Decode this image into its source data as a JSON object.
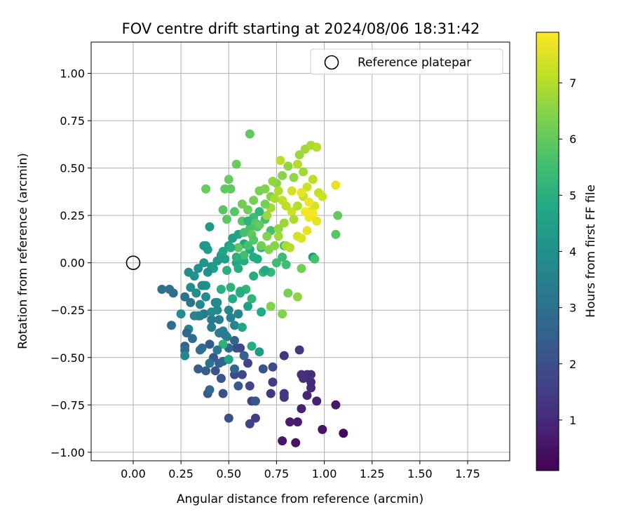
{
  "chart_data": {
    "type": "scatter",
    "title": "FOV centre drift starting at 2024/08/06 18:31:42",
    "xlabel": "Angular distance from reference (arcmin)",
    "ylabel": "Rotation from reference (arcmin)",
    "xlim": [
      -0.22,
      1.97
    ],
    "ylim": [
      -1.045,
      1.165
    ],
    "xticks": [
      "0.00",
      "0.25",
      "0.50",
      "0.75",
      "1.00",
      "1.25",
      "1.50",
      "1.75"
    ],
    "yticks": [
      "−1.00",
      "−0.75",
      "−0.50",
      "−0.25",
      "0.00",
      "0.25",
      "0.50",
      "0.75",
      "1.00"
    ],
    "grid": true,
    "legend": {
      "position": "top-right",
      "entries": [
        {
          "label": "Reference platepar",
          "marker": "open-circle"
        }
      ]
    },
    "reference_point": {
      "x": 0.0,
      "y": 0.0
    },
    "colorbar": {
      "label": "Hours from first FF file",
      "range": [
        0.1,
        7.9
      ],
      "ticks": [
        "1",
        "2",
        "3",
        "4",
        "5",
        "6",
        "7"
      ],
      "colormap": "viridis"
    },
    "series": [
      {
        "note": "points: [x, y, hours]",
        "points": [
          [
            1.1,
            -0.9,
            0.3
          ],
          [
            0.99,
            -0.88,
            0.5
          ],
          [
            0.85,
            -0.95,
            0.5
          ],
          [
            0.78,
            -0.94,
            0.6
          ],
          [
            0.82,
            -0.84,
            0.7
          ],
          [
            0.86,
            -0.84,
            0.7
          ],
          [
            0.88,
            -0.77,
            0.8
          ],
          [
            0.96,
            -0.73,
            0.8
          ],
          [
            1.06,
            -0.75,
            0.6
          ],
          [
            0.91,
            -0.7,
            0.9
          ],
          [
            0.93,
            -0.66,
            1.0
          ],
          [
            0.93,
            -0.63,
            1.0
          ],
          [
            0.91,
            -0.59,
            1.1
          ],
          [
            0.93,
            -0.59,
            1.1
          ],
          [
            0.88,
            -0.59,
            1.2
          ],
          [
            0.89,
            -0.61,
            1.2
          ],
          [
            0.87,
            -0.46,
            1.3
          ],
          [
            0.79,
            -0.49,
            1.3
          ],
          [
            0.79,
            -0.69,
            1.3
          ],
          [
            0.79,
            -0.71,
            1.4
          ],
          [
            0.72,
            -0.69,
            1.4
          ],
          [
            0.73,
            -0.63,
            1.5
          ],
          [
            0.64,
            -0.82,
            1.5
          ],
          [
            0.61,
            -0.85,
            1.6
          ],
          [
            0.62,
            -0.73,
            1.6
          ],
          [
            0.61,
            -0.65,
            1.7
          ],
          [
            0.6,
            -0.53,
            1.7
          ],
          [
            0.57,
            -0.59,
            1.8
          ],
          [
            0.56,
            -0.45,
            1.8
          ],
          [
            0.54,
            -0.45,
            1.9
          ],
          [
            0.53,
            -0.59,
            1.9
          ],
          [
            0.5,
            -0.82,
            2.0
          ],
          [
            0.47,
            -0.69,
            2.0
          ],
          [
            0.46,
            -0.61,
            2.1
          ],
          [
            0.43,
            -0.57,
            2.1
          ],
          [
            0.42,
            -0.5,
            2.2
          ],
          [
            0.4,
            -0.43,
            2.3
          ],
          [
            0.39,
            -0.69,
            2.3
          ],
          [
            0.38,
            -0.57,
            2.4
          ],
          [
            0.34,
            -0.56,
            2.4
          ],
          [
            0.27,
            -0.44,
            2.5
          ],
          [
            0.45,
            -0.53,
            2.5
          ],
          [
            0.47,
            -0.52,
            2.6
          ],
          [
            0.5,
            -0.45,
            2.6
          ],
          [
            0.53,
            -0.56,
            2.7
          ],
          [
            0.4,
            -0.67,
            2.7
          ],
          [
            0.36,
            -0.45,
            2.8
          ],
          [
            0.27,
            -0.46,
            2.8
          ],
          [
            0.2,
            -0.33,
            2.9
          ],
          [
            0.21,
            -0.16,
            2.9
          ],
          [
            0.15,
            -0.14,
            3.0
          ],
          [
            0.19,
            -0.14,
            3.0
          ],
          [
            0.27,
            -0.18,
            3.1
          ],
          [
            0.3,
            -0.21,
            3.1
          ],
          [
            0.34,
            -0.28,
            3.2
          ],
          [
            0.37,
            -0.27,
            3.2
          ],
          [
            0.41,
            -0.3,
            3.3
          ],
          [
            0.41,
            -0.34,
            3.3
          ],
          [
            0.45,
            -0.3,
            3.3
          ],
          [
            0.43,
            -0.21,
            3.4
          ],
          [
            0.47,
            -0.36,
            3.4
          ],
          [
            0.49,
            -0.39,
            3.5
          ],
          [
            0.51,
            -0.29,
            3.5
          ],
          [
            0.53,
            -0.33,
            3.6
          ],
          [
            0.55,
            -0.27,
            3.6
          ],
          [
            0.5,
            -0.25,
            3.7
          ],
          [
            0.44,
            -0.25,
            3.7
          ],
          [
            0.41,
            -0.26,
            3.8
          ],
          [
            0.38,
            -0.18,
            3.8
          ],
          [
            0.36,
            -0.12,
            3.9
          ],
          [
            0.33,
            -0.16,
            3.9
          ],
          [
            0.29,
            -0.05,
            4.0
          ],
          [
            0.34,
            -0.03,
            4.0
          ],
          [
            0.37,
            0.0,
            4.1
          ],
          [
            0.41,
            -0.02,
            4.1
          ],
          [
            0.4,
            0.19,
            4.2
          ],
          [
            0.37,
            0.09,
            4.2
          ],
          [
            0.38,
            0.09,
            4.3
          ],
          [
            0.39,
            0.07,
            4.3
          ],
          [
            0.46,
            0.04,
            4.4
          ],
          [
            0.48,
            0.02,
            4.4
          ],
          [
            0.5,
            0.09,
            4.5
          ],
          [
            0.52,
            0.13,
            4.5
          ],
          [
            0.55,
            0.15,
            4.6
          ],
          [
            0.54,
            0.0,
            4.6
          ],
          [
            0.58,
            0.1,
            4.7
          ],
          [
            0.61,
            0.07,
            4.7
          ],
          [
            0.63,
            0.03,
            4.8
          ],
          [
            0.65,
            0.02,
            4.8
          ],
          [
            0.58,
            0.01,
            4.9
          ],
          [
            0.55,
            -0.03,
            4.9
          ],
          [
            0.49,
            -0.04,
            5.0
          ],
          [
            0.46,
            -0.14,
            5.0
          ],
          [
            0.51,
            -0.13,
            5.1
          ],
          [
            0.56,
            -0.15,
            5.1
          ],
          [
            0.59,
            -0.14,
            5.2
          ],
          [
            0.62,
            -0.19,
            5.2
          ],
          [
            0.68,
            -0.05,
            5.3
          ],
          [
            0.72,
            -0.05,
            5.3
          ],
          [
            0.75,
            0.0,
            5.4
          ],
          [
            0.78,
            0.03,
            5.4
          ],
          [
            0.8,
            -0.01,
            5.5
          ],
          [
            0.79,
            0.09,
            5.5
          ],
          [
            0.72,
            0.17,
            5.6
          ],
          [
            0.69,
            0.23,
            5.6
          ],
          [
            0.65,
            0.19,
            5.7
          ],
          [
            0.61,
            0.18,
            5.7
          ],
          [
            0.57,
            0.22,
            5.8
          ],
          [
            0.53,
            0.27,
            5.8
          ],
          [
            0.49,
            0.23,
            5.9
          ],
          [
            0.47,
            0.28,
            5.9
          ],
          [
            0.51,
            0.39,
            6.0
          ],
          [
            0.48,
            0.39,
            6.0
          ],
          [
            0.5,
            0.44,
            6.1
          ],
          [
            0.54,
            0.52,
            6.1
          ],
          [
            0.57,
            0.31,
            6.2
          ],
          [
            0.6,
            0.28,
            6.2
          ],
          [
            0.63,
            0.33,
            6.3
          ],
          [
            0.66,
            0.38,
            6.3
          ],
          [
            0.69,
            0.39,
            6.4
          ],
          [
            0.72,
            0.35,
            6.4
          ],
          [
            0.75,
            0.42,
            6.5
          ],
          [
            0.78,
            0.46,
            6.5
          ],
          [
            0.81,
            0.51,
            6.6
          ],
          [
            0.84,
            0.45,
            6.6
          ],
          [
            0.87,
            0.57,
            6.7
          ],
          [
            0.9,
            0.6,
            6.8
          ],
          [
            0.93,
            0.62,
            6.9
          ],
          [
            0.96,
            0.61,
            7.0
          ],
          [
            0.94,
            0.44,
            7.1
          ],
          [
            0.97,
            0.37,
            7.2
          ],
          [
            0.99,
            0.35,
            7.3
          ],
          [
            0.95,
            0.3,
            7.4
          ],
          [
            0.93,
            0.27,
            7.5
          ],
          [
            0.96,
            0.22,
            7.6
          ],
          [
            0.92,
            0.24,
            7.7
          ],
          [
            0.94,
            0.26,
            7.8
          ],
          [
            1.06,
            0.41,
            7.6
          ],
          [
            1.07,
            0.25,
            6.0
          ],
          [
            1.06,
            0.15,
            5.8
          ],
          [
            0.94,
            0.03,
            4.2
          ],
          [
            0.95,
            0.02,
            5.6
          ],
          [
            0.88,
            -0.03,
            6.2
          ],
          [
            0.86,
            -0.18,
            6.6
          ],
          [
            0.78,
            -0.27,
            6.4
          ],
          [
            0.81,
            -0.16,
            6.3
          ],
          [
            0.72,
            -0.23,
            6.4
          ],
          [
            0.61,
            0.68,
            6.0
          ],
          [
            0.38,
            0.39,
            6.1
          ],
          [
            0.3,
            -0.13,
            3.9
          ],
          [
            0.32,
            -0.07,
            4.0
          ],
          [
            0.25,
            -0.27,
            3.8
          ],
          [
            0.27,
            -0.49,
            3.6
          ],
          [
            0.29,
            -0.35,
            3.7
          ],
          [
            0.35,
            -0.28,
            3.5
          ],
          [
            0.38,
            -0.12,
            4.1
          ],
          [
            0.44,
            -0.21,
            3.8
          ],
          [
            0.47,
            -0.43,
            5.1
          ],
          [
            0.5,
            -0.51,
            4.6
          ],
          [
            0.52,
            -0.19,
            4.8
          ],
          [
            0.57,
            -0.34,
            4.7
          ],
          [
            0.62,
            -0.44,
            4.9
          ],
          [
            0.66,
            -0.47,
            4.3
          ],
          [
            0.67,
            -0.26,
            4.8
          ],
          [
            0.6,
            -0.23,
            4.5
          ],
          [
            0.56,
            -0.16,
            4.9
          ],
          [
            0.63,
            -0.07,
            4.9
          ],
          [
            0.67,
            0.08,
            5.1
          ],
          [
            0.69,
            -0.04,
            4.8
          ],
          [
            0.7,
            0.14,
            6.4
          ],
          [
            0.76,
            0.14,
            6.8
          ],
          [
            0.8,
            0.09,
            6.9
          ],
          [
            0.82,
            0.08,
            7.0
          ],
          [
            0.86,
            0.14,
            7.4
          ],
          [
            0.88,
            0.13,
            7.5
          ],
          [
            0.91,
            0.17,
            7.6
          ],
          [
            0.83,
            0.27,
            7.3
          ],
          [
            0.8,
            0.3,
            7.1
          ],
          [
            0.78,
            0.33,
            7.2
          ],
          [
            0.76,
            0.38,
            7.0
          ],
          [
            0.74,
            0.34,
            6.9
          ],
          [
            0.72,
            0.29,
            6.8
          ],
          [
            0.7,
            0.25,
            6.7
          ],
          [
            0.66,
            0.27,
            5.2
          ],
          [
            0.63,
            0.24,
            5.4
          ],
          [
            0.6,
            0.22,
            5.1
          ],
          [
            0.58,
            0.16,
            5.6
          ],
          [
            0.55,
            0.08,
            5.9
          ],
          [
            0.62,
            0.15,
            6.0
          ],
          [
            0.64,
            0.21,
            5.8
          ],
          [
            0.67,
            0.09,
            6.2
          ],
          [
            0.71,
            0.07,
            6.4
          ],
          [
            0.74,
            0.09,
            6.5
          ],
          [
            0.76,
            0.18,
            6.6
          ],
          [
            0.79,
            0.21,
            6.7
          ],
          [
            0.84,
            0.23,
            6.9
          ],
          [
            0.86,
            0.3,
            7.0
          ],
          [
            0.89,
            0.35,
            7.2
          ],
          [
            0.91,
            0.4,
            7.3
          ],
          [
            0.89,
            0.48,
            6.8
          ],
          [
            0.86,
            0.52,
            7.0
          ],
          [
            0.83,
            0.38,
            7.4
          ],
          [
            0.88,
            0.37,
            7.6
          ],
          [
            0.92,
            0.32,
            7.7
          ],
          [
            0.9,
            0.27,
            7.8
          ],
          [
            0.77,
            0.54,
            7.1
          ],
          [
            0.73,
            0.43,
            6.6
          ],
          [
            0.69,
            0.31,
            6.3
          ],
          [
            0.66,
            0.2,
            6.0
          ],
          [
            0.63,
            0.12,
            5.8
          ],
          [
            0.6,
            0.09,
            5.6
          ],
          [
            0.58,
            0.04,
            5.5
          ],
          [
            0.54,
            0.03,
            5.0
          ],
          [
            0.51,
            0.08,
            4.9
          ],
          [
            0.47,
            0.06,
            4.7
          ],
          [
            0.44,
            0.01,
            4.3
          ],
          [
            0.42,
            -0.03,
            4.4
          ],
          [
            0.39,
            -0.05,
            4.0
          ],
          [
            0.37,
            -0.12,
            3.9
          ],
          [
            0.35,
            -0.22,
            3.7
          ],
          [
            0.32,
            -0.28,
            3.6
          ],
          [
            0.45,
            -0.37,
            3.4
          ],
          [
            0.48,
            -0.38,
            3.3
          ],
          [
            0.44,
            -0.46,
            3.2
          ],
          [
            0.4,
            -0.53,
            3.1
          ],
          [
            0.35,
            -0.46,
            2.9
          ],
          [
            0.31,
            -0.4,
            2.8
          ],
          [
            0.28,
            -0.37,
            2.7
          ],
          [
            0.53,
            -0.41,
            2.6
          ],
          [
            0.58,
            -0.49,
            2.5
          ],
          [
            0.55,
            -0.65,
            2.3
          ],
          [
            0.64,
            -0.73,
            2.2
          ],
          [
            0.68,
            -0.56,
            2.1
          ],
          [
            0.73,
            -0.55,
            1.9
          ]
        ]
      }
    ]
  }
}
